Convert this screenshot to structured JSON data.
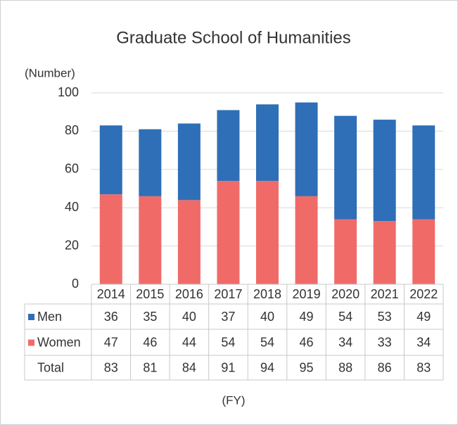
{
  "chart_data": {
    "type": "bar",
    "stacked": true,
    "title": "Graduate School of Humanities",
    "ylabel": "(Number)",
    "xlabel": "(FY)",
    "categories": [
      "2014",
      "2015",
      "2016",
      "2017",
      "2018",
      "2019",
      "2020",
      "2021",
      "2022"
    ],
    "series": [
      {
        "name": "Men",
        "color": "#2e6fb7",
        "values": [
          36,
          35,
          40,
          37,
          40,
          49,
          54,
          53,
          49
        ]
      },
      {
        "name": "Women",
        "color": "#f06b68",
        "values": [
          47,
          46,
          44,
          54,
          54,
          46,
          34,
          33,
          34
        ]
      }
    ],
    "totals": {
      "name": "Total",
      "values": [
        83,
        81,
        84,
        91,
        94,
        95,
        88,
        86,
        83
      ]
    },
    "ylim": [
      0,
      100
    ],
    "yticks": [
      0,
      20,
      40,
      60,
      80,
      100
    ],
    "grid": true
  }
}
